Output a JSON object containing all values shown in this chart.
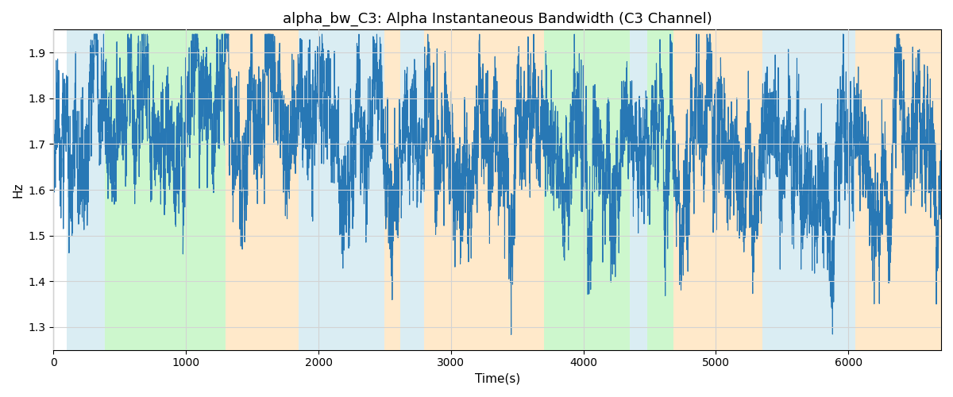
{
  "title": "alpha_bw_C3: Alpha Instantaneous Bandwidth (C3 Channel)",
  "xlabel": "Time(s)",
  "ylabel": "Hz",
  "ylim": [
    1.25,
    1.95
  ],
  "xlim": [
    0,
    6700
  ],
  "figsize": [
    12.0,
    5.0
  ],
  "dpi": 100,
  "line_color": "#2878b5",
  "line_width": 0.8,
  "seed": 42,
  "n_points": 6700,
  "colored_bands": [
    {
      "xmin": 100,
      "xmax": 390,
      "color": "#add8e6",
      "alpha": 0.45
    },
    {
      "xmin": 390,
      "xmax": 1300,
      "color": "#90ee90",
      "alpha": 0.45
    },
    {
      "xmin": 1300,
      "xmax": 1850,
      "color": "#ffd8a0",
      "alpha": 0.55
    },
    {
      "xmin": 1850,
      "xmax": 2500,
      "color": "#add8e6",
      "alpha": 0.45
    },
    {
      "xmin": 2500,
      "xmax": 2620,
      "color": "#ffd8a0",
      "alpha": 0.55
    },
    {
      "xmin": 2620,
      "xmax": 2800,
      "color": "#add8e6",
      "alpha": 0.45
    },
    {
      "xmin": 2800,
      "xmax": 3700,
      "color": "#ffd8a0",
      "alpha": 0.55
    },
    {
      "xmin": 3700,
      "xmax": 4350,
      "color": "#90ee90",
      "alpha": 0.45
    },
    {
      "xmin": 4350,
      "xmax": 4480,
      "color": "#add8e6",
      "alpha": 0.45
    },
    {
      "xmin": 4480,
      "xmax": 4680,
      "color": "#90ee90",
      "alpha": 0.45
    },
    {
      "xmin": 4680,
      "xmax": 5350,
      "color": "#ffd8a0",
      "alpha": 0.55
    },
    {
      "xmin": 5350,
      "xmax": 6050,
      "color": "#add8e6",
      "alpha": 0.45
    },
    {
      "xmin": 6050,
      "xmax": 6700,
      "color": "#ffd8a0",
      "alpha": 0.55
    }
  ],
  "yticks": [
    1.3,
    1.4,
    1.5,
    1.6,
    1.7,
    1.8,
    1.9
  ],
  "xticks": [
    0,
    1000,
    2000,
    3000,
    4000,
    5000,
    6000
  ]
}
